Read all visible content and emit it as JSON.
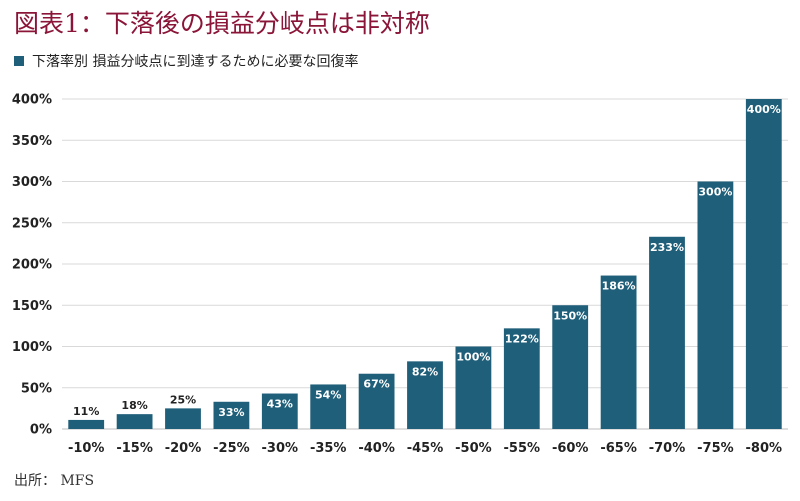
{
  "title": "図表1：下落後の損益分岐点は非対称",
  "source": "出所： MFS",
  "colors": {
    "title": "#8a1538",
    "bar": "#1f5f7a",
    "grid": "#d9d9d9"
  },
  "chart_data": {
    "type": "bar",
    "categories": [
      "-10%",
      "-15%",
      "-20%",
      "-25%",
      "-30%",
      "-35%",
      "-40%",
      "-45%",
      "-50%",
      "-55%",
      "-60%",
      "-65%",
      "-70%",
      "-75%",
      "-80%"
    ],
    "series": [
      {
        "name": "下落率別 損益分岐点に到達するために必要な回復率",
        "values": [
          11,
          18,
          25,
          33,
          43,
          54,
          67,
          82,
          100,
          122,
          150,
          186,
          233,
          300,
          400
        ],
        "labels": [
          "11%",
          "18%",
          "25%",
          "33%",
          "43%",
          "54%",
          "67%",
          "82%",
          "100%",
          "122%",
          "150%",
          "186%",
          "233%",
          "300%",
          "400%"
        ]
      }
    ],
    "ylim": [
      0,
      400
    ],
    "yticks": [
      0,
      50,
      100,
      150,
      200,
      250,
      300,
      350,
      400
    ],
    "ytick_labels": [
      "0%",
      "50%",
      "100%",
      "150%",
      "200%",
      "250%",
      "300%",
      "350%",
      "400%"
    ],
    "grid": true,
    "legend_position": "top-left"
  }
}
